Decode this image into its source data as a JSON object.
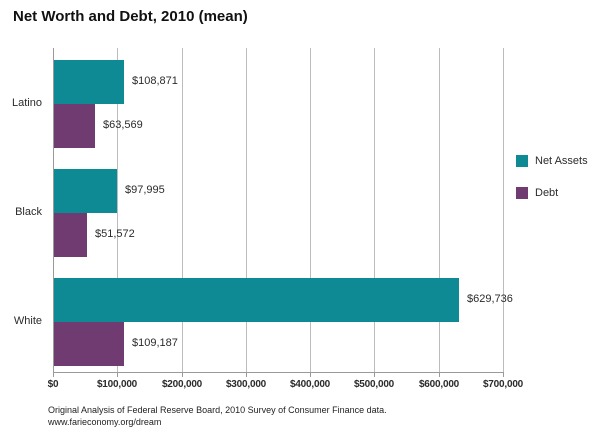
{
  "title": "Net Worth and Debt, 2010 (mean)",
  "chart_data": {
    "type": "bar",
    "orientation": "horizontal",
    "title": "Net Worth and Debt, 2010 (mean)",
    "categories": [
      "Latino",
      "Black",
      "White"
    ],
    "series": [
      {
        "name": "Net Assets",
        "color": "#0d8a94",
        "values": [
          108871,
          97995,
          629736
        ],
        "labels": [
          "$108,871",
          "$97,995",
          "$629,736"
        ]
      },
      {
        "name": "Debt",
        "color": "#6f3b70",
        "values": [
          63569,
          51572,
          109187
        ],
        "labels": [
          "$63,569",
          "$51,572",
          "$109,187"
        ]
      }
    ],
    "xlabel": "",
    "ylabel": "",
    "xlim": [
      0,
      700000
    ],
    "x_ticks": [
      "$0",
      "$100,000",
      "$200,000",
      "$300,000",
      "$400,000",
      "$500,000",
      "$600,000",
      "$700,000"
    ],
    "grid": true,
    "legend_position": "right"
  },
  "legend": {
    "items": [
      {
        "label": "Net Assets",
        "color": "#0d8a94"
      },
      {
        "label": "Debt",
        "color": "#6f3b70"
      }
    ]
  },
  "footer": {
    "line1": "Original Analysis of Federal Reserve Board, 2010 Survey of Consumer Finance data.",
    "line2": "www.farieconomy.org/dream"
  }
}
